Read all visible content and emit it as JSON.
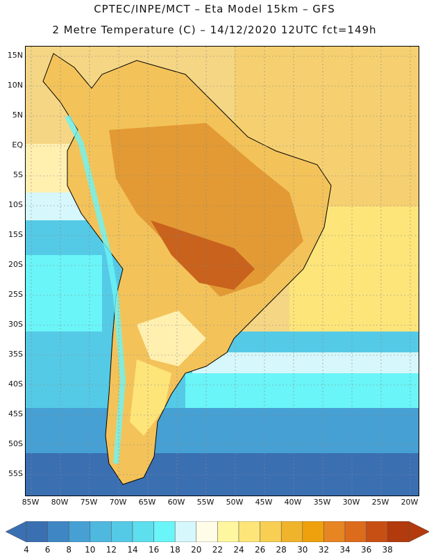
{
  "header": {
    "line1": "CPTEC/INPE/MCT –  Eta Model 15km – GFS",
    "line2": "2 Metre Temperature (C) – 14/12/2020 12UTC fct=149h"
  },
  "axes": {
    "lat_labels": [
      "15N",
      "10N",
      "5N",
      "EQ",
      "5S",
      "10S",
      "15S",
      "20S",
      "25S",
      "30S",
      "35S",
      "40S",
      "45S",
      "50S",
      "55S"
    ],
    "lon_labels": [
      "85W",
      "80W",
      "75W",
      "70W",
      "65W",
      "60W",
      "55W",
      "50W",
      "45W",
      "40W",
      "35W",
      "30W",
      "25W",
      "20W"
    ]
  },
  "colorbar": {
    "ticks": [
      "4",
      "6",
      "8",
      "10",
      "12",
      "14",
      "16",
      "18",
      "20",
      "22",
      "24",
      "26",
      "28",
      "30",
      "32",
      "34",
      "36",
      "38"
    ],
    "colors": [
      "#3a6fb2",
      "#3f86c4",
      "#46a0d4",
      "#4fb8df",
      "#55cae6",
      "#5ddfee",
      "#6af5f8",
      "#d6f7fb",
      "#fffce8",
      "#fff7a0",
      "#fde57a",
      "#f8cf52",
      "#f0b42c",
      "#eea10c",
      "#e78522",
      "#dd6b1c",
      "#c84f14",
      "#b23a0c"
    ],
    "left_arrow_color": "#3a6fb2",
    "right_arrow_color": "#b23a0c"
  }
}
